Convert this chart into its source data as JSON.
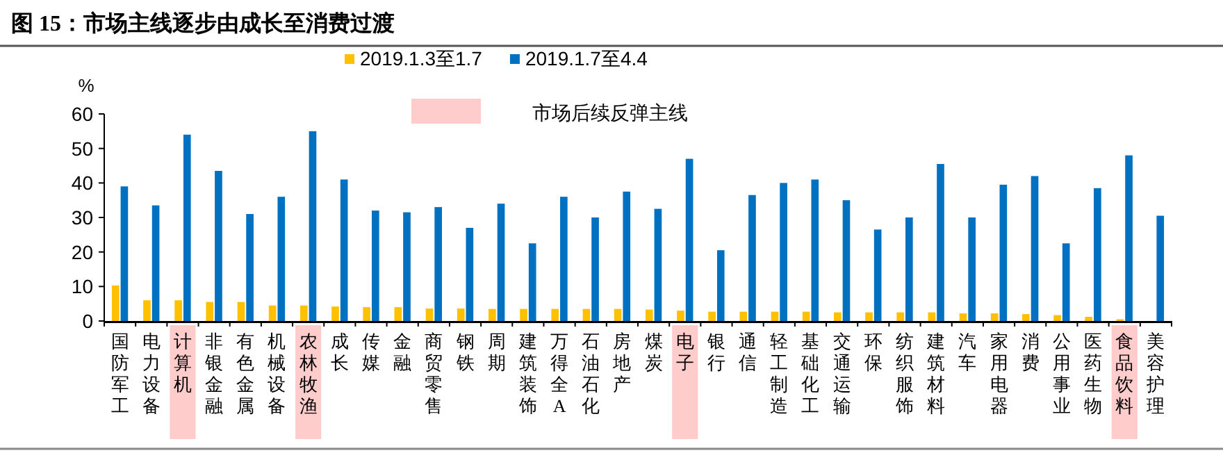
{
  "chart_data": {
    "type": "bar",
    "title": "图 15：市场主线逐步由成长至消费过渡",
    "ylabel": "%",
    "categories": [
      "国防军工",
      "电力设备",
      "计算机",
      "非银金融",
      "有色金属",
      "机械设备",
      "农林牧渔",
      "成长",
      "传媒",
      "金融",
      "商贸零售",
      "钢铁",
      "周期",
      "建筑装饰",
      "万得全A",
      "石油石化",
      "房地产",
      "煤炭",
      "电子",
      "银行",
      "通信",
      "轻工制造",
      "基础化工",
      "交通运输",
      "环保",
      "纺织服饰",
      "建筑材料",
      "汽车",
      "家用电器",
      "消费",
      "公用事业",
      "医药生物",
      "食品饮料",
      "美容护理"
    ],
    "series": [
      {
        "name": "2019.1.3至1.7",
        "color": "#ffc000",
        "values": [
          10.3,
          6,
          6,
          5.5,
          5.5,
          4.5,
          4.5,
          4.2,
          4,
          4,
          3.6,
          3.6,
          3.5,
          3.5,
          3.5,
          3.5,
          3.5,
          3.3,
          3,
          2.7,
          2.7,
          2.7,
          2.7,
          2.5,
          2.5,
          2.5,
          2.5,
          2.2,
          2.2,
          2,
          1.7,
          1.2,
          0.5,
          null
        ]
      },
      {
        "name": "2019.1.7至4.4",
        "color": "#0070c0",
        "values": [
          39,
          33.5,
          54,
          43.5,
          31,
          36,
          55,
          41,
          32,
          31.5,
          33,
          27,
          34,
          22.5,
          36,
          30,
          37.5,
          32.5,
          47,
          20.5,
          36.5,
          40,
          41,
          35,
          26.5,
          30,
          45.5,
          30,
          39.5,
          42,
          22.5,
          38.5,
          48,
          30.5
        ]
      }
    ],
    "annotations": [
      "市场后续反弹主线"
    ],
    "ylim": [
      0,
      60
    ],
    "yticks": [
      0,
      10,
      20,
      30,
      40,
      50,
      60
    ],
    "legend": "top",
    "grid": false
  }
}
